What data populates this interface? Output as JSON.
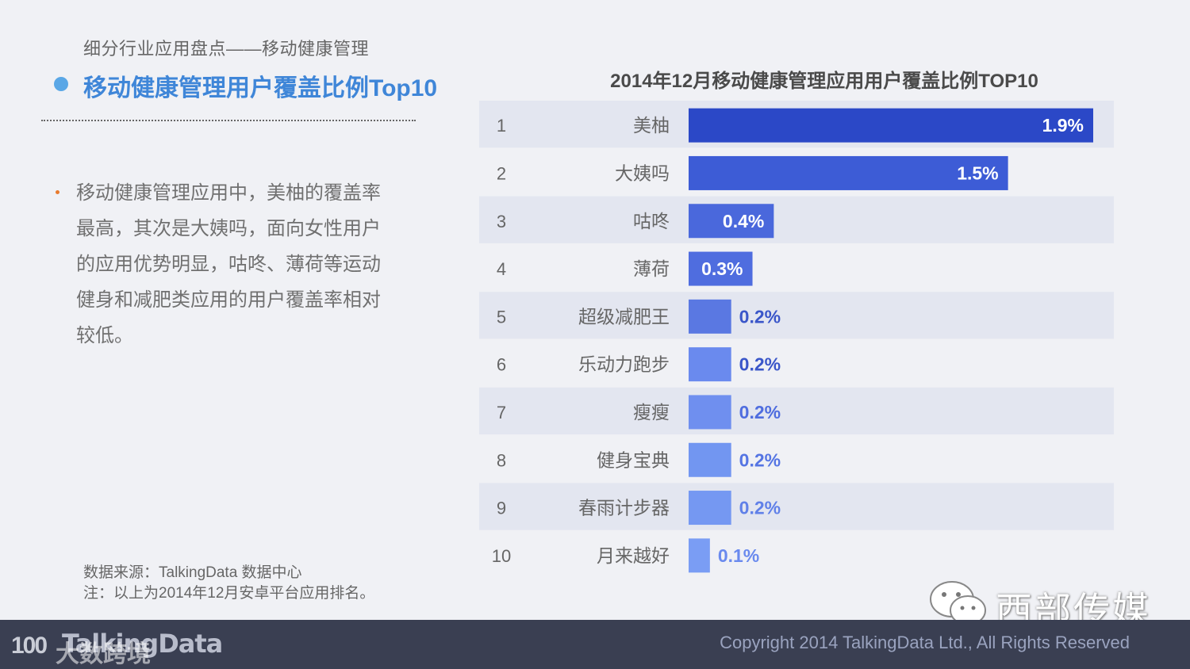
{
  "header": {
    "breadcrumb": "细分行业应用盘点——移动健康管理",
    "title": "移动健康管理用户覆盖比例Top10"
  },
  "description": "移动健康管理应用中，美柚的覆盖率最高，其次是大姨吗，面向女性用户的应用优势明显，咕咚、薄荷等运动健身和减肥类应用的用户覆盖率相对较低。",
  "source": {
    "line1": "数据来源：TalkingData 数据中心",
    "line2": "注：以上为2014年12月安卓平台应用排名。"
  },
  "footer": {
    "logo": "TalkingData",
    "logo_mark": "100",
    "logo_cn": "大数跨境",
    "copyright": "Copyright 2014 TalkingData Ltd., All Rights Reserved",
    "watermark": "西部传媒"
  },
  "chart_data": {
    "type": "bar",
    "orientation": "horizontal",
    "title": "2014年12月移动健康管理应用用户覆盖比例TOP10",
    "ranks": [
      "1",
      "2",
      "3",
      "4",
      "5",
      "6",
      "7",
      "8",
      "9",
      "10"
    ],
    "categories": [
      "美柚",
      "大姨吗",
      "咕咚",
      "薄荷",
      "超级减肥王",
      "乐动力跑步",
      "瘦瘦",
      "健身宝典",
      "春雨计步器",
      "月来越好"
    ],
    "values": [
      1.9,
      1.5,
      0.4,
      0.3,
      0.2,
      0.2,
      0.2,
      0.2,
      0.2,
      0.1
    ],
    "value_labels": [
      "1.9%",
      "1.5%",
      "0.4%",
      "0.3%",
      "0.2%",
      "0.2%",
      "0.2%",
      "0.2%",
      "0.2%",
      "0.1%"
    ],
    "unit": "%",
    "xlim": [
      0,
      1.9
    ],
    "colors": {
      "bars": [
        "#2b48c7",
        "#3d5cd6",
        "#4a68dc",
        "#4f6ddf",
        "#5a78e2",
        "#6a8aee",
        "#6f8fef",
        "#7296f1",
        "#7598f2",
        "#7a9df4"
      ],
      "label_inside": "#ffffff",
      "label_outside": [
        "#3a56c9",
        "#3a56c9",
        "#4f6ddf",
        "#5575e3",
        "#6080e8",
        "#6a8aee"
      ],
      "stripe": "#e3e6f0"
    }
  }
}
